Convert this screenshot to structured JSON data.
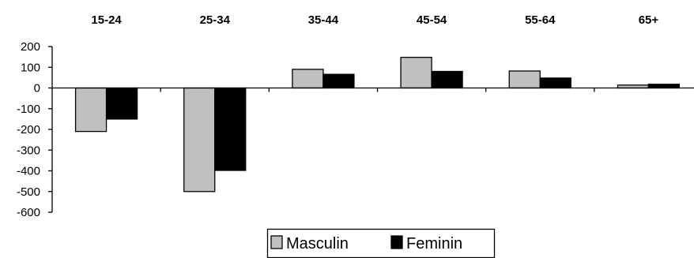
{
  "chart_data": {
    "type": "bar",
    "categories": [
      "15-24",
      "25-34",
      "35-44",
      "45-54",
      "55-64",
      "65+"
    ],
    "series": [
      {
        "name": "Masculin",
        "values": [
          -210,
          -500,
          90,
          148,
          82,
          14
        ],
        "color": "#c0c0c0"
      },
      {
        "name": "Feminin",
        "values": [
          -150,
          -398,
          66,
          80,
          48,
          18
        ],
        "color": "#000000"
      }
    ],
    "y_ticks": [
      200,
      100,
      0,
      -100,
      -200,
      -300,
      -400,
      -500,
      -600
    ],
    "ylim": [
      -600,
      200
    ],
    "legend_position": "bottom-center",
    "category_labels_position": "top",
    "grid": false
  }
}
